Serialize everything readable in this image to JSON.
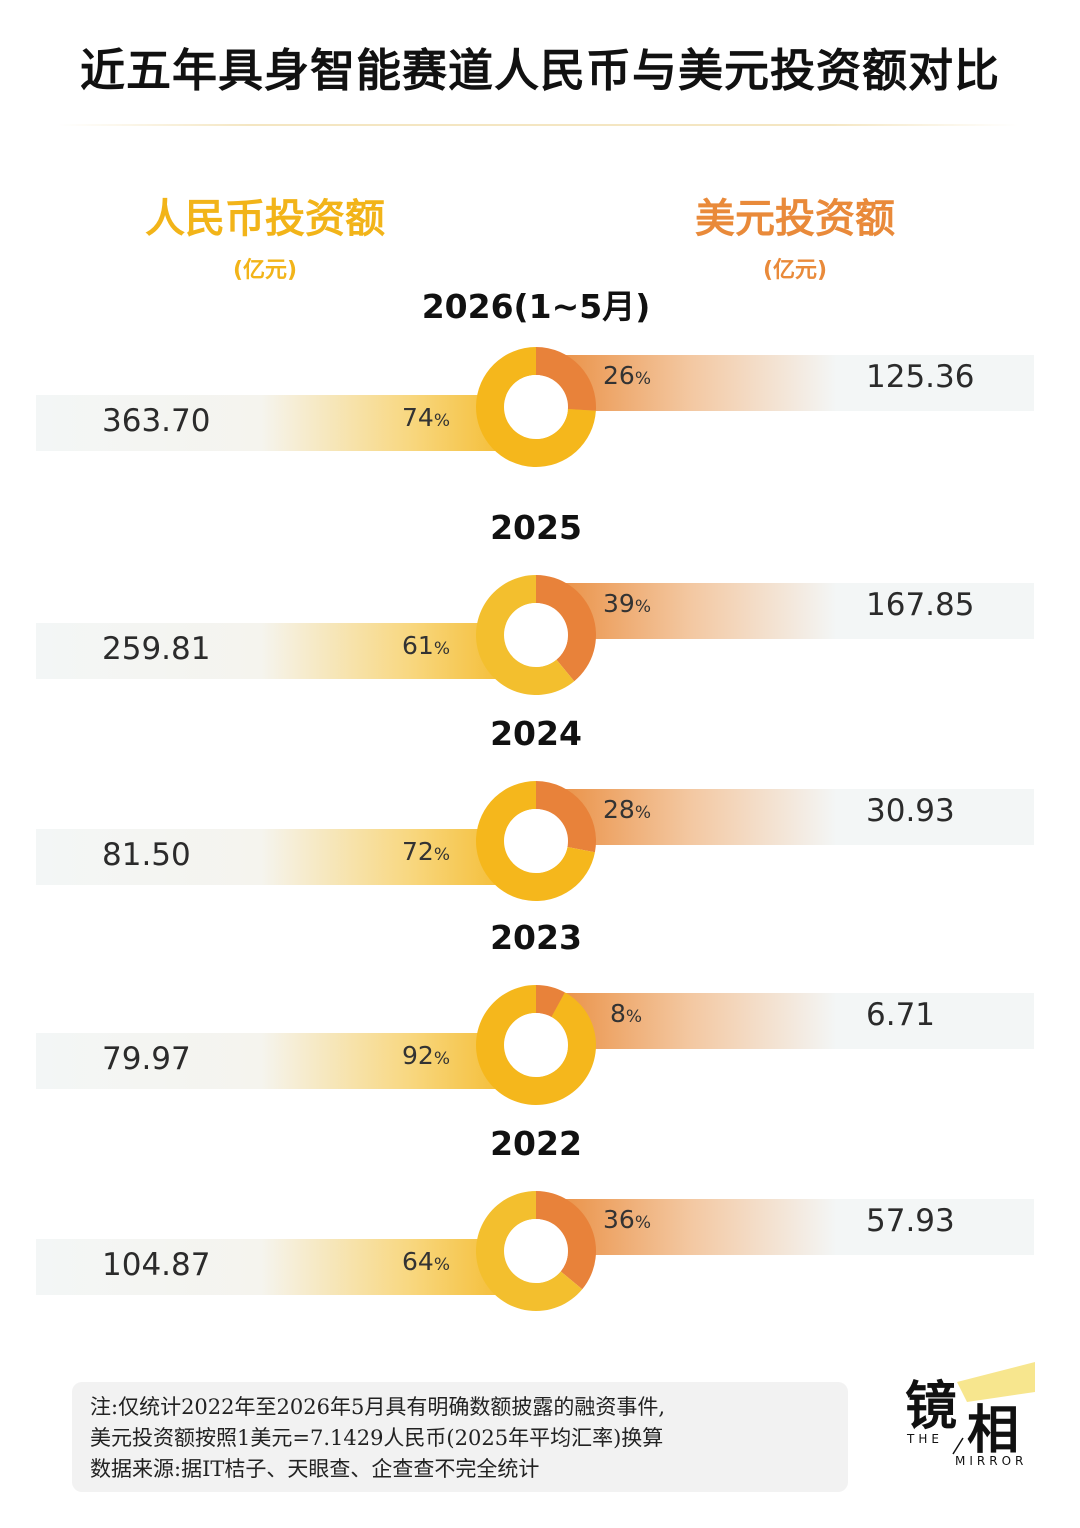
{
  "title": "近五年具身智能赛道人民币与美元投资额对比",
  "left_header": "人民币投资额",
  "left_unit": "(亿元)",
  "right_header": "美元投资额",
  "right_unit": "(亿元)",
  "colors": {
    "rmb": "#f5b71c",
    "usd": "#e8823a",
    "rmb_light": "#f2d58a"
  },
  "chart_data": {
    "type": "pie",
    "donut": true,
    "categories": [
      "2026(1~5月)",
      "2025",
      "2024",
      "2023",
      "2022"
    ],
    "series": [
      {
        "name": "人民币投资额",
        "values": [
          363.7,
          259.81,
          81.5,
          79.97,
          104.87
        ],
        "labels": [
          "363.70",
          "259.81",
          "81.50",
          "79.97",
          "104.87"
        ],
        "pct": [
          74,
          61,
          72,
          92,
          64
        ],
        "pct_labels": [
          "74%",
          "61%",
          "72%",
          "92%",
          "64%"
        ]
      },
      {
        "name": "美元投资额",
        "values": [
          125.36,
          167.85,
          30.93,
          6.71,
          57.93
        ],
        "labels": [
          "125.36",
          "167.85",
          "30.93",
          "6.71",
          "57.93"
        ],
        "pct": [
          26,
          39,
          28,
          8,
          36
        ],
        "pct_labels": [
          "26%",
          "39%",
          "28%",
          "8%",
          "36%"
        ]
      }
    ]
  },
  "note": {
    "line1": "注:仅统计2022年至2026年5月具有明确数额披露的融资事件,",
    "line2": "美元投资额按照1美元=7.1429人民币(2025年平均汇率)换算",
    "line3": "数据来源:据IT桔子、天眼查、企查查不完全统计"
  },
  "logo": {
    "char1": "镜",
    "char2": "相",
    "the": "THE",
    "mirror": "MIRROR"
  }
}
